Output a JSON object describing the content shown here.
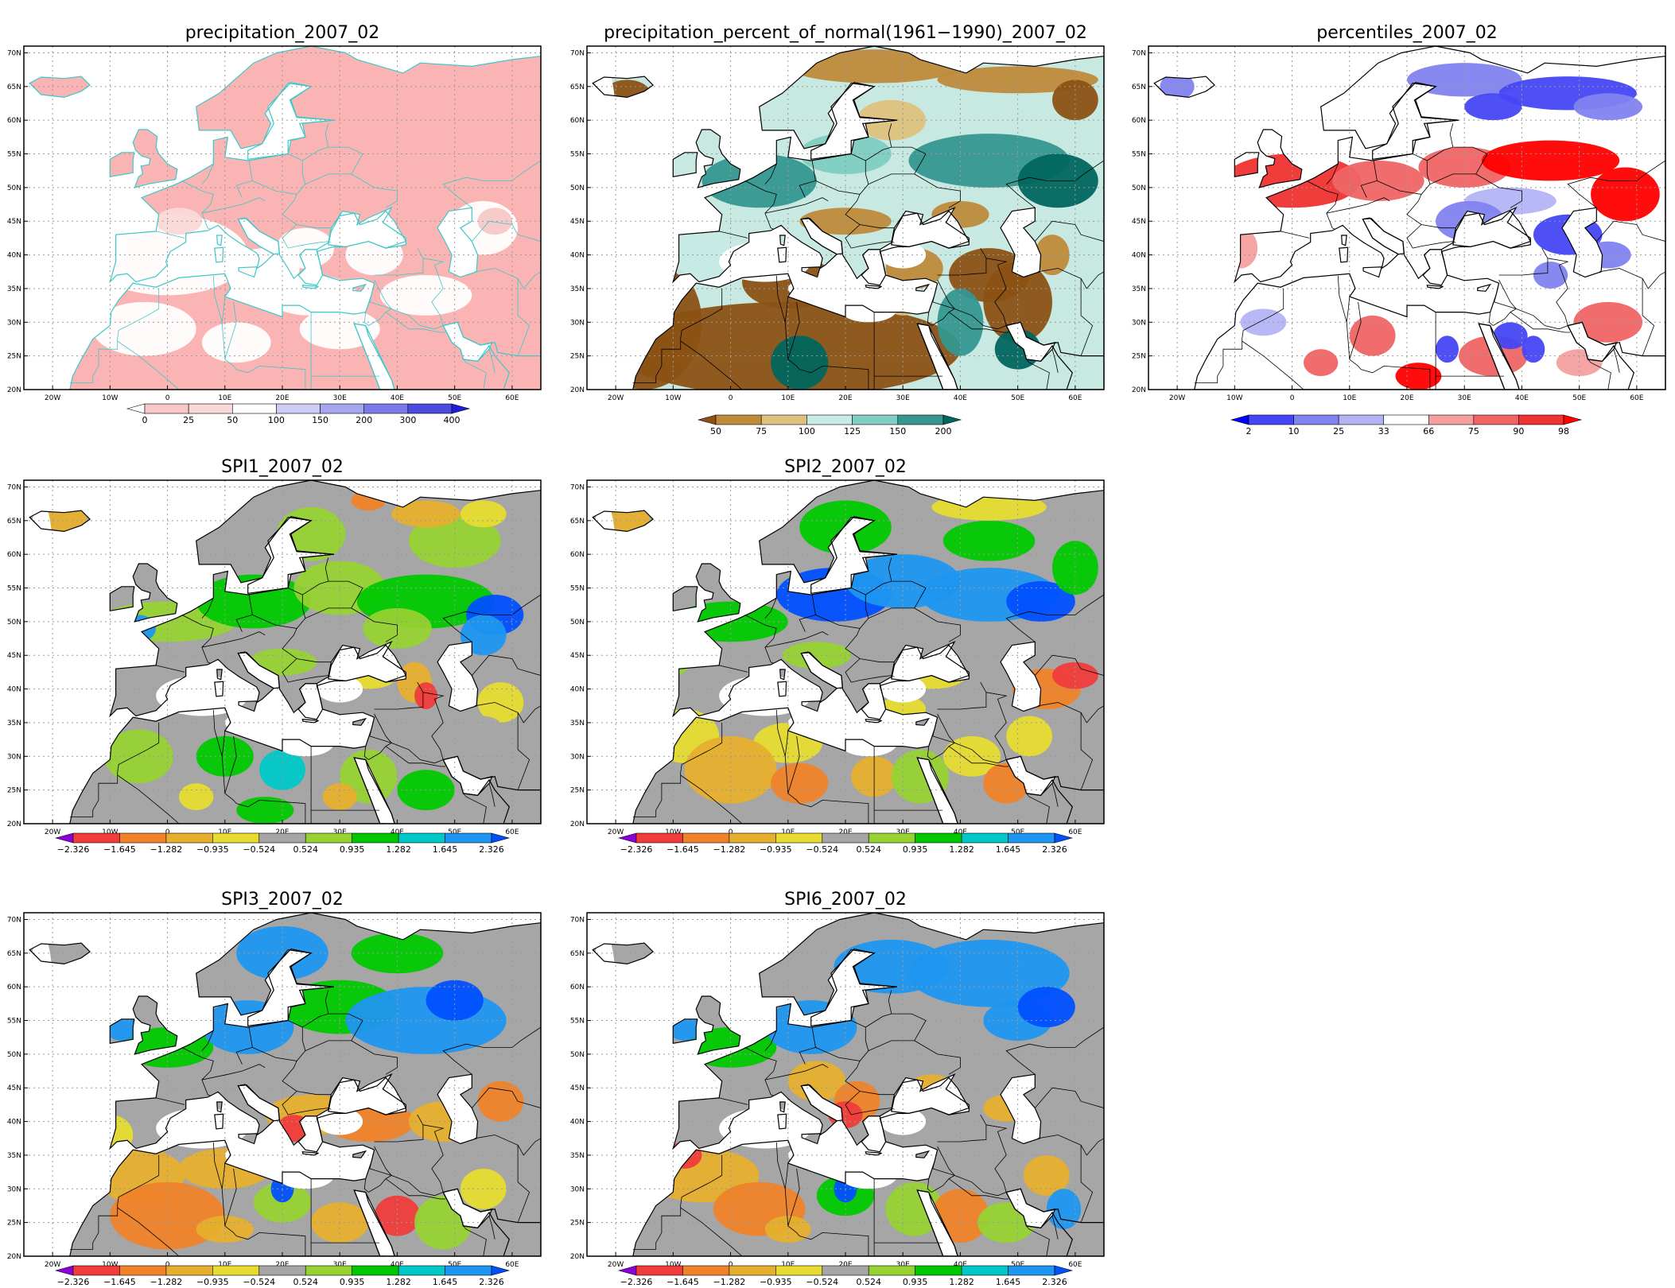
{
  "figure": {
    "lon_labels": [
      "20W",
      "10W",
      "0",
      "10E",
      "20E",
      "30E",
      "40E",
      "50E",
      "60E"
    ],
    "lat_labels": [
      "70N",
      "65N",
      "60N",
      "55N",
      "50N",
      "45N",
      "40N",
      "35N",
      "30N",
      "25N",
      "20N"
    ]
  },
  "maps": [
    {
      "id": "precipitation",
      "title": "precipitation_2007_02",
      "background": "#fbb4b4",
      "border_color": "#3cc8c8",
      "colorbar": {
        "labels": [
          "0",
          "25",
          "50",
          "100",
          "150",
          "200",
          "300",
          "400"
        ],
        "colors": [
          "#ffffff",
          "#f8c8c8",
          "#fbd8d8",
          "#ffffff",
          "#ccccf5",
          "#a6a6ee",
          "#7a7ae6",
          "#4b4bdd",
          "#1e1ee0"
        ]
      }
    },
    {
      "id": "percent_of_normal",
      "title": "precipitation_percent_of_normal(1961−1990)_2007_02",
      "background": "#c8e8e2",
      "border_color": "#000000",
      "colorbar": {
        "labels": [
          "50",
          "75",
          "100",
          "125",
          "150",
          "200"
        ],
        "colors": [
          "#8c5214",
          "#bf8a3a",
          "#dfc27d",
          "#c7eae5",
          "#80cdc1",
          "#35978f",
          "#01665e"
        ]
      }
    },
    {
      "id": "percentiles",
      "title": "percentiles_2007_02",
      "background": "#ffffff",
      "border_color": "#000000",
      "colorbar": {
        "labels": [
          "2",
          "10",
          "25",
          "33",
          "66",
          "75",
          "90",
          "98"
        ],
        "colors": [
          "#0000ff",
          "#4646f5",
          "#8282f0",
          "#b4b4f5",
          "#ffffff",
          "#f5a0a0",
          "#f06464",
          "#f03232",
          "#ff0000"
        ]
      }
    },
    {
      "id": "spi1",
      "title": "SPI1_2007_02",
      "background": "#a6a6a6",
      "border_color": "#000000",
      "colorbar": {
        "labels": [
          "−2.326",
          "−1.645",
          "−1.282",
          "−0.935",
          "−0.524",
          "0.524",
          "0.935",
          "1.282",
          "1.645",
          "2.326"
        ],
        "colors": [
          "#8c00dc",
          "#f03c3c",
          "#f08228",
          "#e6af2d",
          "#e6dc32",
          "#a6a6a6",
          "#96d232",
          "#00c800",
          "#00c8c8",
          "#1e96f0",
          "#0050ff"
        ]
      }
    },
    {
      "id": "spi2",
      "title": "SPI2_2007_02",
      "background": "#a6a6a6",
      "border_color": "#000000",
      "colorbar": {
        "labels": [
          "−2.326",
          "−1.645",
          "−1.282",
          "−0.935",
          "−0.524",
          "0.524",
          "0.935",
          "1.282",
          "1.645",
          "2.326"
        ],
        "colors": [
          "#8c00dc",
          "#f03c3c",
          "#f08228",
          "#e6af2d",
          "#e6dc32",
          "#a6a6a6",
          "#96d232",
          "#00c800",
          "#00c8c8",
          "#1e96f0",
          "#0050ff"
        ]
      }
    },
    {
      "id": "spi3",
      "title": "SPI3_2007_02",
      "background": "#a6a6a6",
      "border_color": "#000000",
      "colorbar": {
        "labels": [
          "−2.326",
          "−1.645",
          "−1.282",
          "−0.935",
          "−0.524",
          "0.524",
          "0.935",
          "1.282",
          "1.645",
          "2.326"
        ],
        "colors": [
          "#8c00dc",
          "#f03c3c",
          "#f08228",
          "#e6af2d",
          "#e6dc32",
          "#a6a6a6",
          "#96d232",
          "#00c800",
          "#00c8c8",
          "#1e96f0",
          "#0050ff"
        ]
      }
    },
    {
      "id": "spi6",
      "title": "SPI6_2007_02",
      "background": "#a6a6a6",
      "border_color": "#000000",
      "colorbar": {
        "labels": [
          "−2.326",
          "−1.645",
          "−1.282",
          "−0.935",
          "−0.524",
          "0.524",
          "0.935",
          "1.282",
          "1.645",
          "2.326"
        ],
        "colors": [
          "#8c00dc",
          "#f03c3c",
          "#f08228",
          "#e6af2d",
          "#e6dc32",
          "#a6a6a6",
          "#96d232",
          "#00c800",
          "#00c8c8",
          "#1e96f0",
          "#0050ff"
        ]
      }
    }
  ]
}
